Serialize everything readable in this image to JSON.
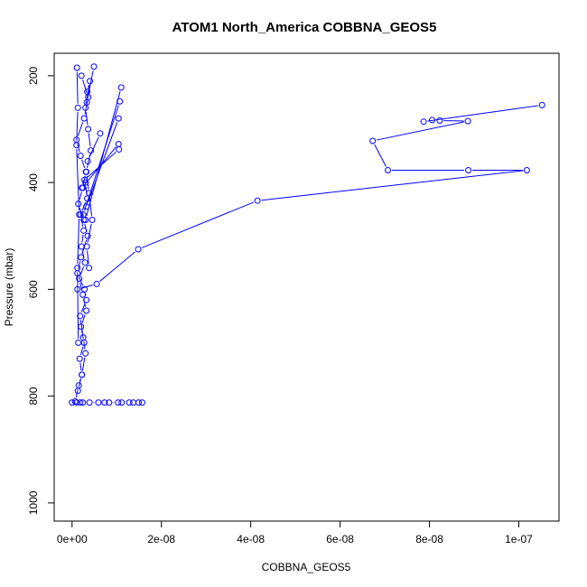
{
  "chart_data": {
    "type": "line",
    "title": "ATOM1 North_America COBBNA_GEOS5",
    "xlabel": "COBBNA_GEOS5",
    "ylabel": "Pressure (mbar)",
    "xlim": [
      -4e-09,
      1.09e-07
    ],
    "ylim": [
      1034,
      158
    ],
    "y_reversed": true,
    "x_ticks": [
      {
        "value": 0,
        "label": "0e+00"
      },
      {
        "value": 2e-08,
        "label": "2e-08"
      },
      {
        "value": 4e-08,
        "label": "4e-08"
      },
      {
        "value": 6e-08,
        "label": "6e-08"
      },
      {
        "value": 8e-08,
        "label": "8e-08"
      },
      {
        "value": 1e-07,
        "label": "1e-07"
      }
    ],
    "y_ticks": [
      {
        "value": 200,
        "label": "200"
      },
      {
        "value": 400,
        "label": "400"
      },
      {
        "value": 600,
        "label": "600"
      },
      {
        "value": 800,
        "label": "800"
      },
      {
        "value": 1000,
        "label": "1000"
      }
    ],
    "series_color": "#0000ff",
    "series": [
      {
        "x": [
          7e-10,
          1.5e-09,
          2.2e-09,
          3e-09,
          2.5e-09,
          1.8e-09,
          3.2e-09,
          2.8e-09,
          1.2e-09,
          2e-09,
          3.5e-09,
          2.6e-09,
          1.4e-09,
          2.4e-09,
          3.1e-09,
          1.9e-09,
          1e-09,
          2.7e-09,
          3.6e-09,
          2.1e-09
        ],
        "y": [
          810,
          780,
          760,
          720,
          690,
          650,
          620,
          600,
          570,
          540,
          500,
          470,
          440,
          410,
          380,
          350,
          320,
          280,
          240,
          200
        ]
      },
      {
        "x": [
          3.4e-09,
          4e-09,
          3e-09,
          3.6e-09,
          4.2e-09,
          3.2e-09,
          3.8e-09,
          4.5e-09,
          3.3e-09,
          3.8e-09
        ],
        "y": [
          230,
          210,
          260,
          300,
          340,
          380,
          420,
          470,
          520,
          560
        ]
      },
      {
        "x": [
          1.3e-09,
          2.2e-09,
          1.7e-09,
          2.7e-09,
          2e-09,
          3.2e-09,
          2.4e-09,
          1.6e-09,
          2.9e-09,
          2.1e-09,
          2.6e-09,
          1.9e-09,
          3.4e-09,
          3e-09
        ],
        "y": [
          790,
          760,
          730,
          700,
          670,
          640,
          610,
          580,
          550,
          520,
          490,
          460,
          430,
          400
        ]
      },
      {
        "x": [
          1.1e-08,
          3e-09
        ],
        "y": [
          222,
          470
        ]
      },
      {
        "x": [
          1.07e-08,
          2.5e-09
        ],
        "y": [
          248,
          460
        ]
      },
      {
        "x": [
          1.04e-08,
          3.2e-09
        ],
        "y": [
          280,
          445
        ]
      },
      {
        "x": [
          1.04e-08,
          2.2e-09
        ],
        "y": [
          328,
          410
        ]
      },
      {
        "x": [
          1.05e-08,
          2.8e-09
        ],
        "y": [
          338,
          395
        ]
      },
      {
        "x": [
          6.3e-09,
          3.5e-09
        ],
        "y": [
          308,
          360
        ]
      },
      {
        "x": [
          4.9e-09,
          3.3e-09
        ],
        "y": [
          183,
          250
        ]
      },
      {
        "x": [
          1.2e-09,
          5.5e-09,
          1.48e-08,
          4.15e-08,
          1.018e-07,
          8.87e-08,
          7.07e-08,
          6.73e-08,
          8.86e-08,
          8.23e-08,
          8.06e-08,
          7.87e-08,
          1.052e-07
        ],
        "y": [
          600,
          590,
          525,
          434,
          377,
          377,
          377,
          322,
          285,
          284,
          283,
          286,
          255
        ]
      },
      {
        "x": [
          0,
          1e-09,
          1.8e-09,
          2.4e-09,
          3.9e-09,
          5.9e-09,
          7.3e-09,
          8.3e-09,
          1.03e-08,
          1.11e-08,
          1.28e-08,
          1.37e-08,
          1.49e-08,
          1.57e-08
        ],
        "y": [
          812,
          812,
          812,
          812,
          812,
          812,
          812,
          812,
          812,
          812,
          812,
          812,
          812,
          812
        ]
      },
      {
        "x": [
          1.1e-09,
          1.3e-09,
          1e-09,
          1.6e-09,
          1.2e-09,
          1.4e-09
        ],
        "y": [
          185,
          260,
          330,
          460,
          560,
          700
        ]
      }
    ]
  }
}
